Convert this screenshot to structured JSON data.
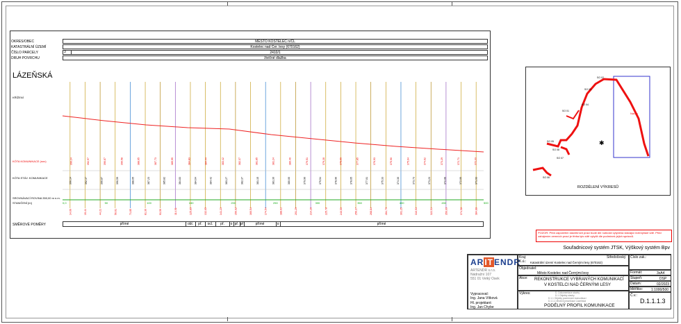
{
  "table_header": {
    "rows": [
      {
        "label": "OKRES/OBEC",
        "value": "MĚSTO KOSTELEC n/ČL"
      },
      {
        "label": "KATASTRÁLNÍ ÚZEMÍ",
        "value": "Kostelec nad Čer. lesy (670162)"
      },
      {
        "label": "ČÍSLO PARCELY",
        "sub": "3",
        "value": "2410/1"
      },
      {
        "label": "DRUH POVRCHU",
        "value": "živičné dlažba"
      }
    ]
  },
  "street_name": "LÁZEŇSKÁ",
  "profile": {
    "crossings_label": "KŘÍŽENÍ",
    "road_level_label": "KÓTA KOMUNIKACE (nov)",
    "existing_level_label": "KÓTA STÁV. KOMUNIKACE",
    "datum_label": "SROVNÁVACÍ ROVINA 350,00 m n.m.",
    "chainage_label": "STANIČENÍ [m]",
    "direction_label": "SMĚROVÉ POMĚRY",
    "directions": [
      "přímé",
      "obl.",
      "př.",
      "ocl.",
      "př.",
      "o",
      "př.",
      "př",
      "přímé",
      "o",
      "přímé"
    ],
    "chainage_markers": [
      "0,0",
      "50",
      "100",
      "150",
      "200",
      "250",
      "300",
      "350",
      "400",
      "450",
      "500"
    ],
    "levels_new": [
      "390,24",
      "392,97",
      "390,87",
      "390,58",
      "388,65",
      "387,73",
      "385,95",
      "384,83",
      "384,44",
      "383,42",
      "382,37",
      "381,85",
      "381,24",
      "380,40",
      "379,51",
      "379,28",
      "378,69",
      "377,85",
      "376,93",
      "375,90",
      "375,04",
      "374,62",
      "373,29",
      "372,71",
      "372,33"
    ],
    "levels_existing": [
      "390,14",
      "392,37",
      "390,87",
      "390,59",
      "388,65",
      "387,23",
      "385,82",
      "384,83",
      "384,64",
      "384,42",
      "383,27",
      "382,37",
      "381,15",
      "381,30",
      "380,00",
      "379,90",
      "379,54",
      "378,96",
      "378,65",
      "377,01",
      "375,33",
      "374,30",
      "373,73",
      "373,23",
      "372,06",
      "372,00",
      "371,93"
    ],
    "chainages": [
      "14,09",
      "19,41",
      "44,21",
      "56,61",
      "71,85",
      "81,30",
      "93,59",
      "114,91",
      "125,89",
      "132,65",
      "141,23",
      "150,92",
      "160,54",
      "174,54",
      "188,61",
      "201,29",
      "214,26",
      "225,78",
      "240,55",
      "256,37",
      "268,84",
      "284,79",
      "301,25",
      "310,93",
      "322,51",
      "350,09",
      "374,58",
      "384,88"
    ]
  },
  "overview": {
    "caption": "ROZDĚLENÍ VÝKRESŮ",
    "labels": [
      "SO 03",
      "SO 02",
      "SO 04",
      "SO 01",
      "SO 05",
      "SO 06",
      "SO 07",
      "SO 08",
      "Návrh"
    ]
  },
  "legend_note": "POZOR: Před započetím stavebních prací bude dle nutnosti vytyčena stávající inženýrské sítě. Před zahájením zemních prací je třeba tyto sítě vytyčit dle podmínek jejich správců.",
  "coord_system": "Souřadnicový systém JTSK,  Výškový systém  Bpv",
  "title_block": {
    "logo_left": "AR",
    "logo_mid": "IT",
    "logo_right": "ENDR",
    "company_lines": [
      "ARTENDR s.r.o.",
      "Nádražní 107",
      "551 01 Velký Osek"
    ],
    "drawn_label": "Vypracoval:",
    "drawn_by": "Ing. Jana Vítková",
    "chief_label": "Hl. projektant:",
    "chief": "Ing. Jan Chybe",
    "kraj_label": "Kraj:",
    "ku_label": "K.ú.:",
    "ku_value": "Katastrální území Kostelec nad Černými lesy (670162)",
    "region_value": "Středočeský",
    "client_label": "Objednatel:",
    "client_value": "Město Kostelec nad Černými lesy",
    "action_label": "Akce:",
    "action_value_1": "REKONSTRUKCE VYBRANÝCH KOMUNIKACÍ",
    "action_value_2": "V KOSTELCI NAD ČERNÝMI LESY",
    "drawing_label": "Výkres:",
    "drawing_small": [
      "D. Dokumentace stavby",
      "D.1 Objekty stavby",
      "D.1.1 Objekty pozemních komunikací",
      "D.1.1.1 Místní komunikace Lázeňská"
    ],
    "drawing_title": "PODÉLNÝ PROFIL KOMUNIKACE",
    "order_label": "Číslo zak.:",
    "format_label": "Formát:",
    "format_value": "3xA4",
    "stage_label": "Stupeň:",
    "stage_value": "DSP",
    "date_label": "Datum:",
    "date_value": "02/2023",
    "scale_label": "Měřítko:",
    "scale_value": "1:1000/500",
    "number_label": "Č.v.:",
    "number_value": "D.1.1.1.3"
  }
}
